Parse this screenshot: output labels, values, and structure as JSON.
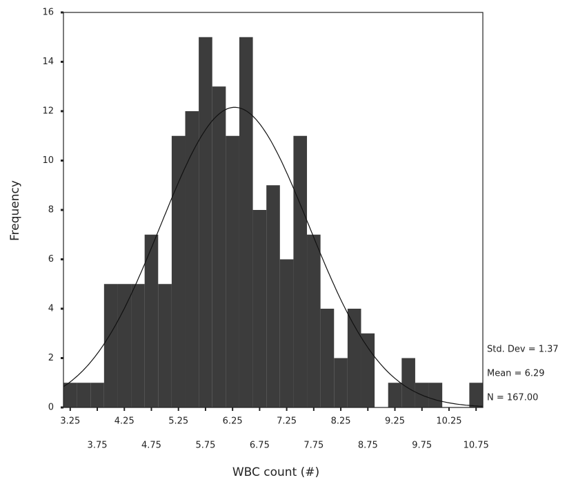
{
  "chart_data": {
    "type": "histogram",
    "x_label": "WBC count (#)",
    "y_label": "Frequency",
    "bins": [
      3.125,
      3.375,
      3.625,
      3.875,
      4.125,
      4.375,
      4.625,
      4.875,
      5.125,
      5.375,
      5.625,
      5.875,
      6.125,
      6.375,
      6.625,
      6.875,
      7.125,
      7.375,
      7.625,
      7.875,
      8.125,
      8.375,
      8.625,
      8.875,
      9.125,
      9.375,
      9.625,
      9.875,
      10.125,
      10.375,
      10.625,
      10.875
    ],
    "counts": [
      1,
      1,
      1,
      5,
      5,
      5,
      7,
      5,
      11,
      12,
      15,
      13,
      11,
      15,
      8,
      9,
      6,
      11,
      7,
      4,
      2,
      4,
      3,
      0,
      1,
      2,
      1,
      1,
      0,
      0,
      1
    ],
    "color": "#3c3c3c",
    "xlim": [
      3.125,
      10.875
    ],
    "xticks": [
      3.25,
      3.75,
      4.25,
      4.75,
      5.25,
      5.75,
      6.25,
      6.75,
      7.25,
      7.75,
      8.25,
      8.75,
      9.25,
      9.75,
      10.25,
      10.75
    ],
    "ylim": [
      0,
      16
    ],
    "yticks": [
      0,
      2,
      4,
      6,
      8,
      10,
      12,
      14,
      16
    ],
    "std_dev": {
      "value": 1.37,
      "label": "Std. Dev = 1.37"
    },
    "mean": {
      "value": 6.29,
      "label": "Mean = 6.29"
    },
    "n": {
      "value": 167,
      "label": "N = 167.00"
    }
  }
}
